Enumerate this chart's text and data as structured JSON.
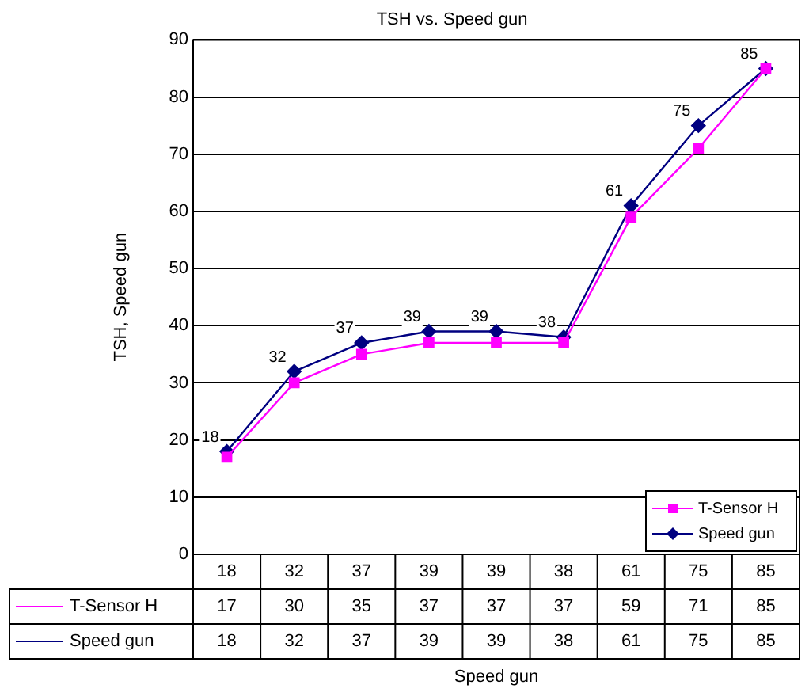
{
  "chart_data": {
    "type": "line",
    "title": "TSH vs. Speed gun",
    "xlabel": "Speed gun",
    "ylabel": "TSH, Speed gun",
    "categories": [
      "18",
      "32",
      "37",
      "39",
      "39",
      "38",
      "61",
      "75",
      "85"
    ],
    "series": [
      {
        "name": "T-Sensor H",
        "color": "#ff00ff",
        "marker": "square",
        "values": [
          17,
          30,
          35,
          37,
          37,
          37,
          59,
          71,
          85
        ]
      },
      {
        "name": "Speed gun",
        "color": "#000080",
        "marker": "diamond",
        "values": [
          18,
          32,
          37,
          39,
          39,
          38,
          61,
          75,
          85
        ]
      }
    ],
    "ylim": [
      0,
      90
    ],
    "yticks": [
      0,
      10,
      20,
      30,
      40,
      50,
      60,
      70,
      80,
      90
    ],
    "grid": "y",
    "line_style": "solid",
    "legend": "bottom right",
    "data_labels": true
  }
}
